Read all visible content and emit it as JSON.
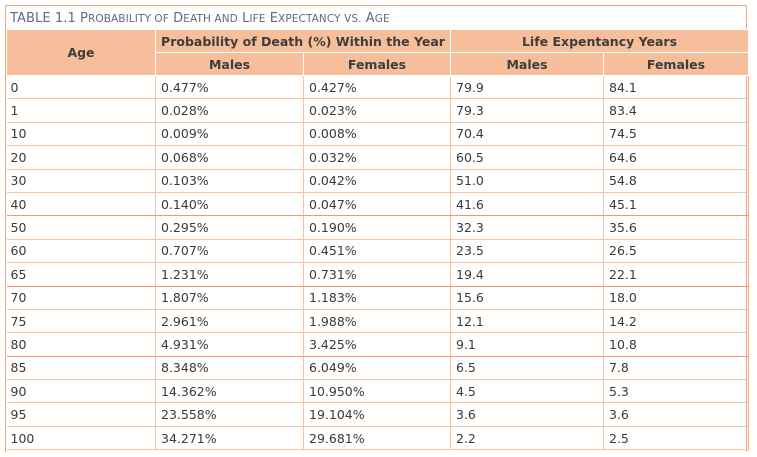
{
  "caption": {
    "prefix": "TABLE 1.1",
    "title": "Probability of Death and Life Expectancy vs. Age"
  },
  "header": {
    "age": "Age",
    "prob_group": "Probability of Death (%) Within the Year",
    "life_group": "Life Expentancy Years",
    "males": "Males",
    "females": "Females"
  },
  "rows": [
    [
      "0",
      "0.477%",
      "0.427%",
      "79.9",
      "84.1"
    ],
    [
      "1",
      "0.028%",
      "0.023%",
      "79.3",
      "83.4"
    ],
    [
      "10",
      "0.009%",
      "0.008%",
      "70.4",
      "74.5"
    ],
    [
      "20",
      "0.068%",
      "0.032%",
      "60.5",
      "64.6"
    ],
    [
      "30",
      "0.103%",
      "0.042%",
      "51.0",
      "54.8"
    ],
    [
      "40",
      "0.140%",
      "0.047%",
      "41.6",
      "45.1"
    ],
    [
      "50",
      "0.295%",
      "0.190%",
      "32.3",
      "35.6"
    ],
    [
      "60",
      "0.707%",
      "0.451%",
      "23.5",
      "26.5"
    ],
    [
      "65",
      "1.231%",
      "0.731%",
      "19.4",
      "22.1"
    ],
    [
      "70",
      "1.807%",
      "1.183%",
      "15.6",
      "18.0"
    ],
    [
      "75",
      "2.961%",
      "1.988%",
      "12.1",
      "14.2"
    ],
    [
      "80",
      "4.931%",
      "3.425%",
      "9.1",
      "10.8"
    ],
    [
      "85",
      "8.348%",
      "6.049%",
      "6.5",
      "7.8"
    ],
    [
      "90",
      "14.362%",
      "10.950%",
      "4.5",
      "5.3"
    ],
    [
      "95",
      "23.558%",
      "19.104%",
      "3.6",
      "3.6"
    ],
    [
      "100",
      "34.271%",
      "29.681%",
      "2.2",
      "2.5"
    ]
  ],
  "colors": {
    "header_bg": "#f7be9c",
    "rule": "#f4c4a7",
    "group_rule": "#ed9a6c",
    "caption": "#5a6b85"
  }
}
